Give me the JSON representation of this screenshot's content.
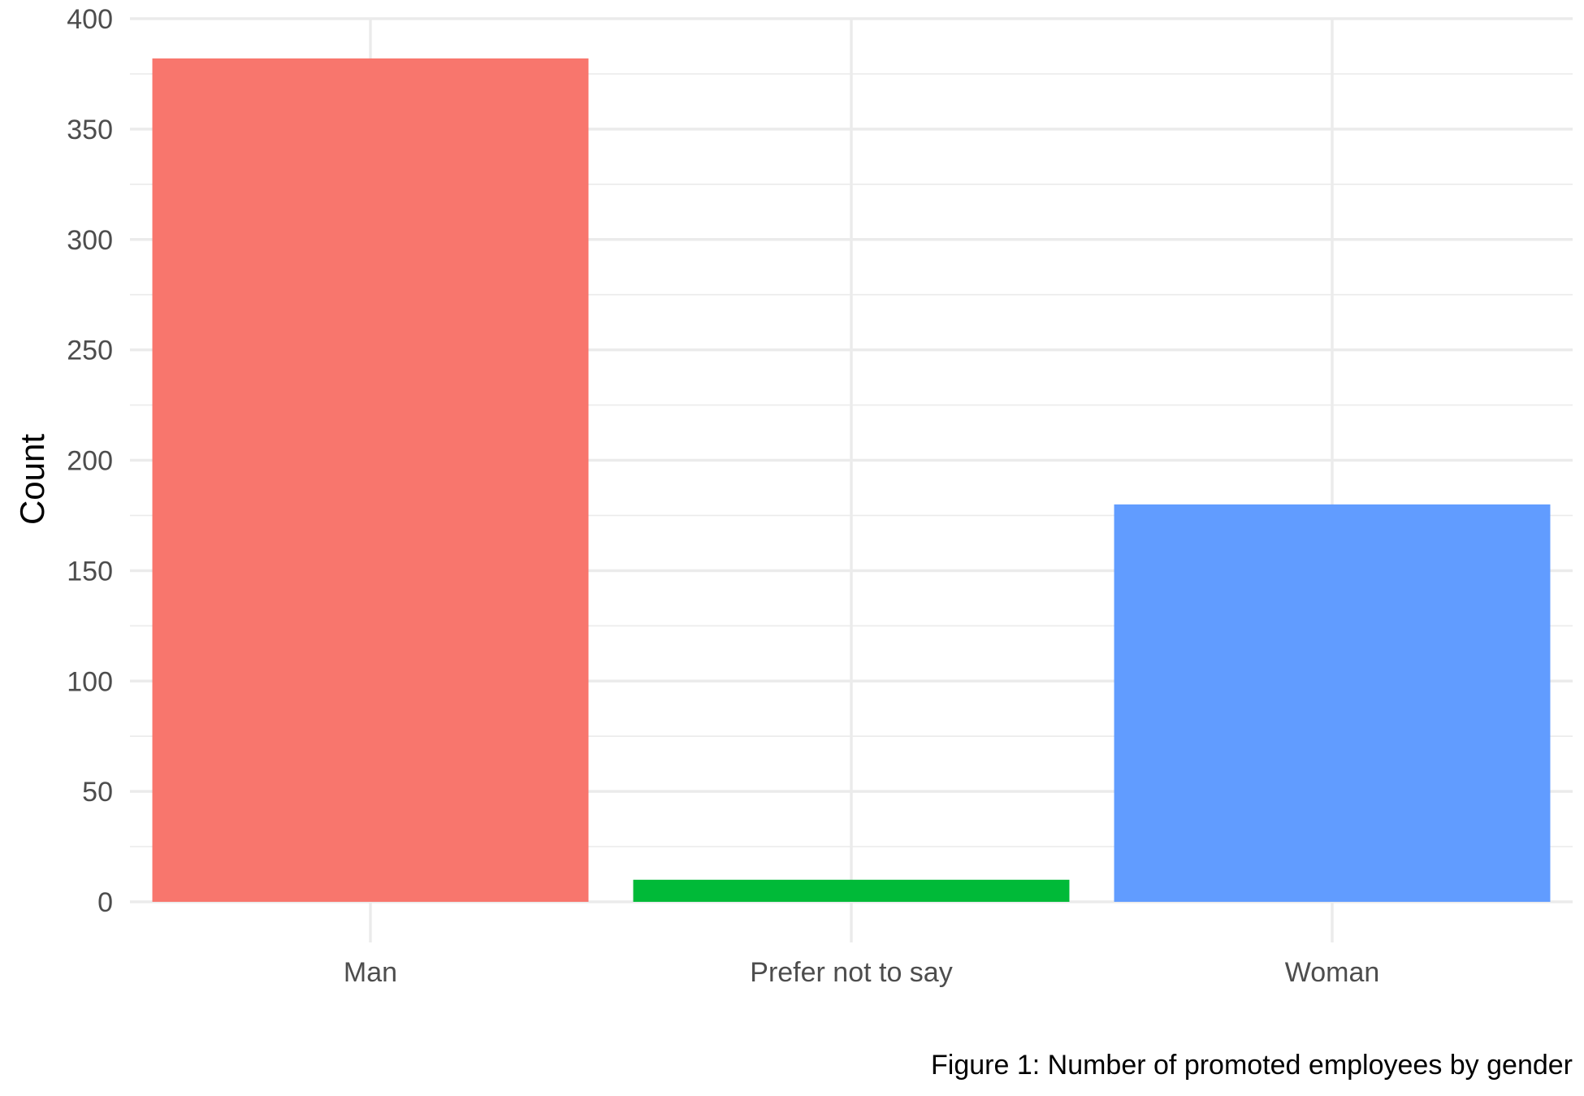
{
  "chart_data": {
    "type": "bar",
    "categories": [
      "Man",
      "Prefer not to say",
      "Woman"
    ],
    "values": [
      382,
      10,
      180
    ],
    "colors": [
      "#F8766D",
      "#00BA38",
      "#619CFF"
    ],
    "xlabel": "",
    "ylabel": "Count",
    "ylim": [
      0,
      400
    ],
    "yticks": [
      0,
      50,
      100,
      150,
      200,
      250,
      300,
      350,
      400
    ],
    "grid": true,
    "legend": "none"
  },
  "caption": "Figure 1: Number of promoted employees by gender"
}
